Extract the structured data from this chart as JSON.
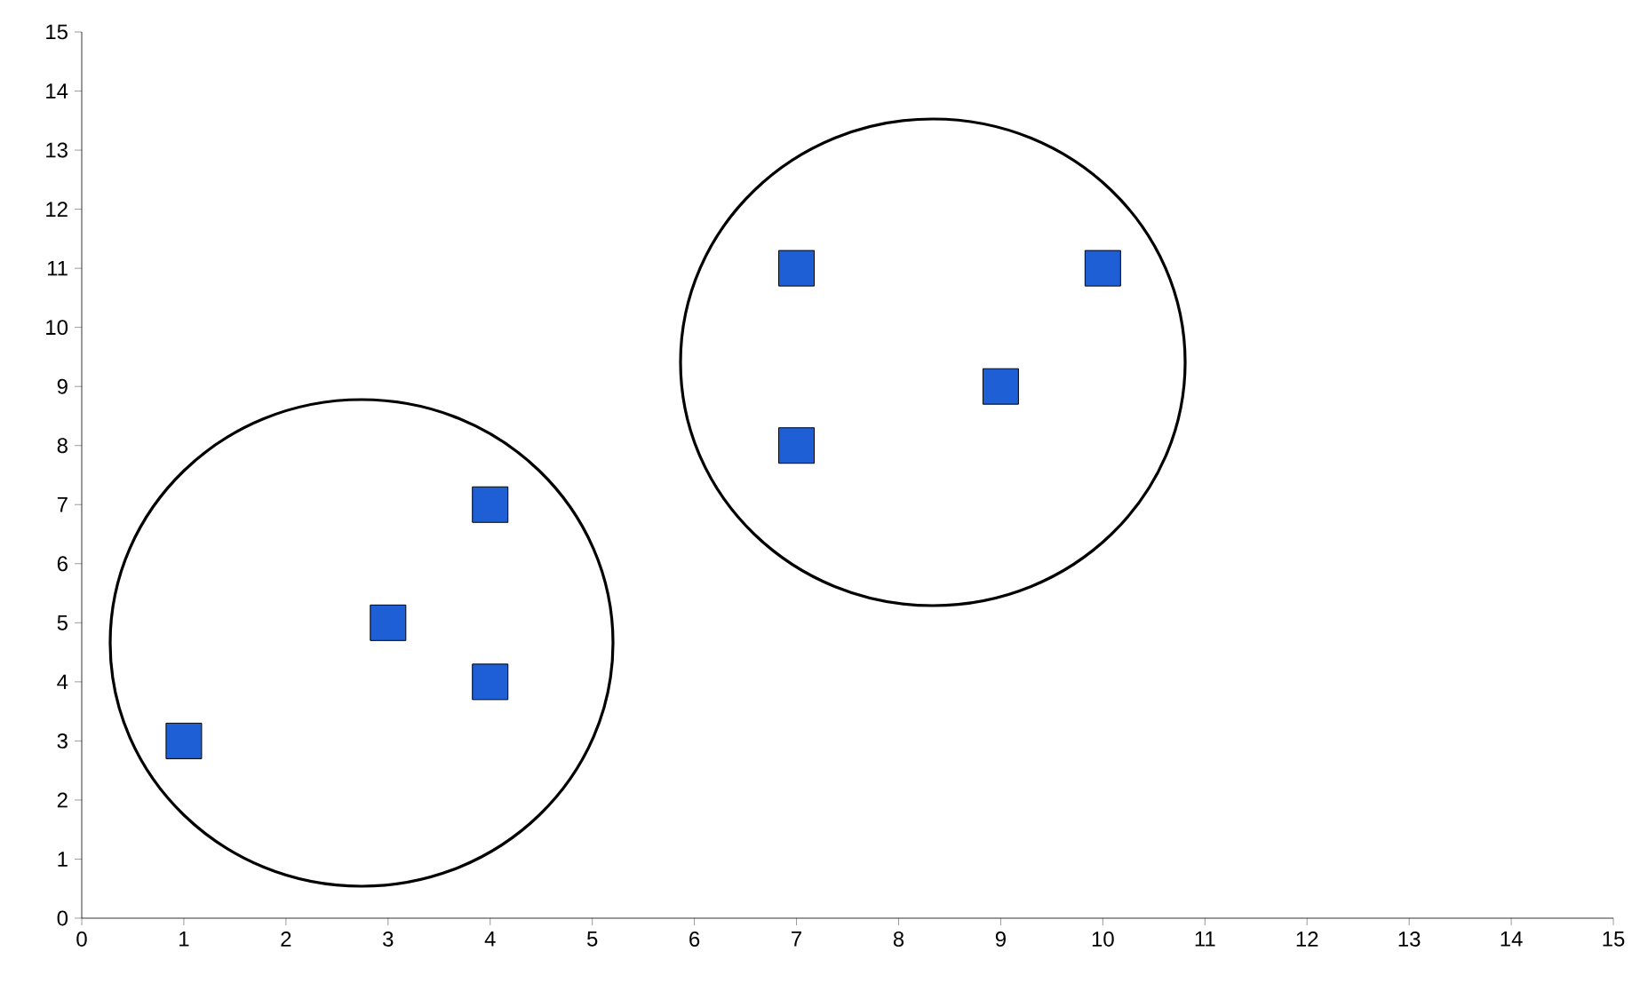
{
  "chart_data": {
    "type": "scatter",
    "x": [
      1,
      3,
      4,
      4,
      7,
      7,
      9,
      10
    ],
    "values": [
      3,
      5,
      4,
      7,
      8,
      11,
      9,
      11
    ],
    "color": "#1f5fd6",
    "marker": "square",
    "grid": false,
    "xlim": [
      0,
      15
    ],
    "ylim": [
      0,
      15
    ],
    "xticks": [
      0,
      1,
      2,
      3,
      4,
      5,
      6,
      7,
      8,
      9,
      10,
      11,
      12,
      13,
      14,
      15
    ],
    "yticks": [
      0,
      1,
      2,
      3,
      4,
      5,
      6,
      7,
      8,
      9,
      10,
      11,
      12,
      13,
      14,
      15
    ]
  }
}
